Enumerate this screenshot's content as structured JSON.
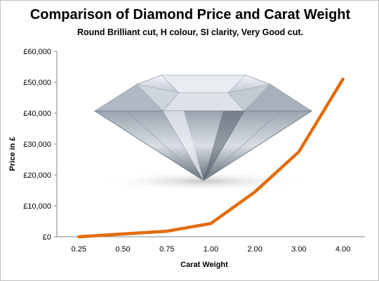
{
  "chart_data": {
    "type": "line",
    "title": "Comparison  of Diamond Price and Carat Weight",
    "subtitle": "Round Brilliant cut, H colour, SI clarity, Very Good cut.",
    "xlabel": "Carat Weight",
    "ylabel": "Price in £",
    "categories": [
      "0.25",
      "0.50",
      "0.75",
      "1.00",
      "2.00",
      "3.00",
      "4.00"
    ],
    "series": [
      {
        "values": [
          0,
          900,
          1800,
          4300,
          14500,
          27500,
          51000
        ],
        "color": "#e36c0a"
      }
    ],
    "ylim": [
      0,
      60000
    ],
    "yticks": [
      "£0",
      "£10,000",
      "£20,000",
      "£30,000",
      "£40,000",
      "£50,000",
      "£60,000"
    ],
    "grid": false,
    "legend": "none",
    "background_image": "diamond-icon"
  }
}
